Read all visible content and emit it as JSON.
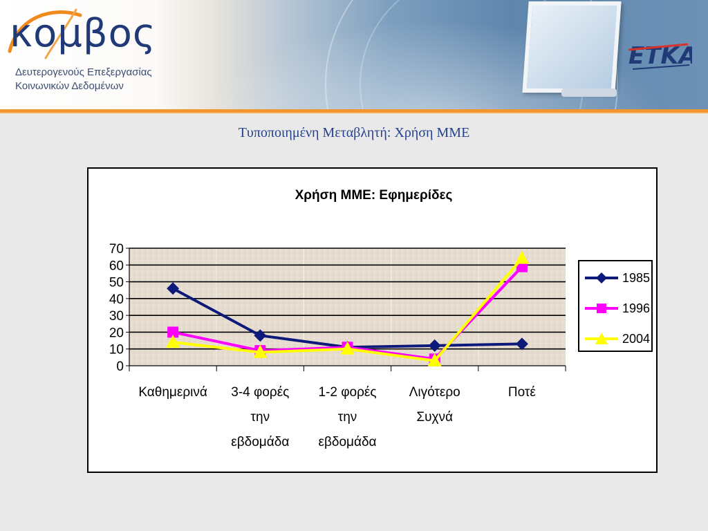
{
  "header": {
    "logo_text": "κομβος",
    "logo_subtitle_1": "Δευτερογενούς Επεξεργασίας",
    "logo_subtitle_2": "Κοινωνικών Δεδομένων",
    "partner_logo_text": "ΕΤΚΑ"
  },
  "slide": {
    "title": "Τυποποιημένη Μεταβλητή: Χρήση ΜΜΕ"
  },
  "chart_data": {
    "type": "line",
    "title": "Χρήση ΜΜΕ: Εφημερίδες",
    "xlabel": "",
    "ylabel": "",
    "categories": [
      [
        "Καθημερινά"
      ],
      [
        "3-4 φορές",
        "την",
        "εβδομάδα"
      ],
      [
        "1-2 φορές",
        "την",
        "εβδομάδα"
      ],
      [
        "Λιγότερο",
        "Συχνά"
      ],
      [
        "Ποτέ"
      ]
    ],
    "ylim": [
      0,
      70
    ],
    "yticks": [
      0,
      10,
      20,
      30,
      40,
      50,
      60,
      70
    ],
    "grid": true,
    "legend_position": "right",
    "series": [
      {
        "name": "1985",
        "values": [
          46,
          18,
          11,
          12,
          13
        ],
        "color": "#0d1a7a",
        "marker": "diamond"
      },
      {
        "name": "1996",
        "values": [
          20,
          9,
          11,
          4,
          59
        ],
        "color": "#ff00ff",
        "marker": "square"
      },
      {
        "name": "2004",
        "values": [
          14,
          8,
          10,
          3,
          64
        ],
        "color": "#ffff00",
        "marker": "triangle"
      }
    ]
  }
}
